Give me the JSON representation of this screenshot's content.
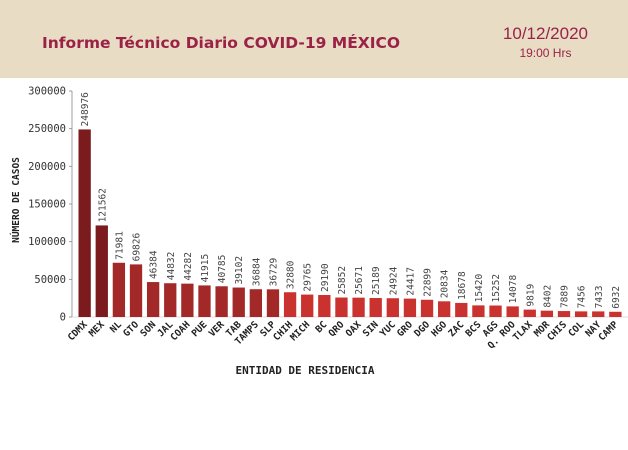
{
  "header": {
    "title": "Informe Técnico Diario COVID-19 MÉXICO",
    "date": "10/12/2020",
    "time": "19:00 Hrs"
  },
  "colors": {
    "header_bg": "#e8dcc4",
    "title": "#9b2247",
    "bar_dark": "#7b1b1e",
    "bar_mid": "#a32828",
    "bar_light": "#c9322f"
  },
  "chart_data": {
    "type": "bar",
    "xlabel": "ENTIDAD DE RESIDENCIA",
    "ylabel": "NÚMERO DE CASOS",
    "ylim": [
      0,
      300000
    ],
    "yticks": [
      "0",
      "50000",
      "100000",
      "150000",
      "200000",
      "250000",
      "300000"
    ],
    "grid": false,
    "categories": [
      "CDMX",
      "MEX",
      "NL",
      "GTO",
      "SON",
      "JAL",
      "COAH",
      "PUE",
      "VER",
      "TAB",
      "TAMPS",
      "SLP",
      "CHIH",
      "MICH",
      "BC",
      "QRO",
      "OAX",
      "SIN",
      "YUC",
      "GRO",
      "DGO",
      "HGO",
      "ZAC",
      "BCS",
      "AGS",
      "Q. ROO",
      "TLAX",
      "MOR",
      "CHIS",
      "COL",
      "NAY",
      "CAMP"
    ],
    "values": [
      248976,
      121562,
      71981,
      69826,
      46384,
      44832,
      44282,
      41915,
      40785,
      39102,
      36884,
      36729,
      32880,
      29765,
      29190,
      25852,
      25671,
      25189,
      24924,
      24417,
      22899,
      20834,
      18678,
      15420,
      15252,
      14078,
      9819,
      8402,
      7889,
      7456,
      7433,
      6932
    ]
  }
}
